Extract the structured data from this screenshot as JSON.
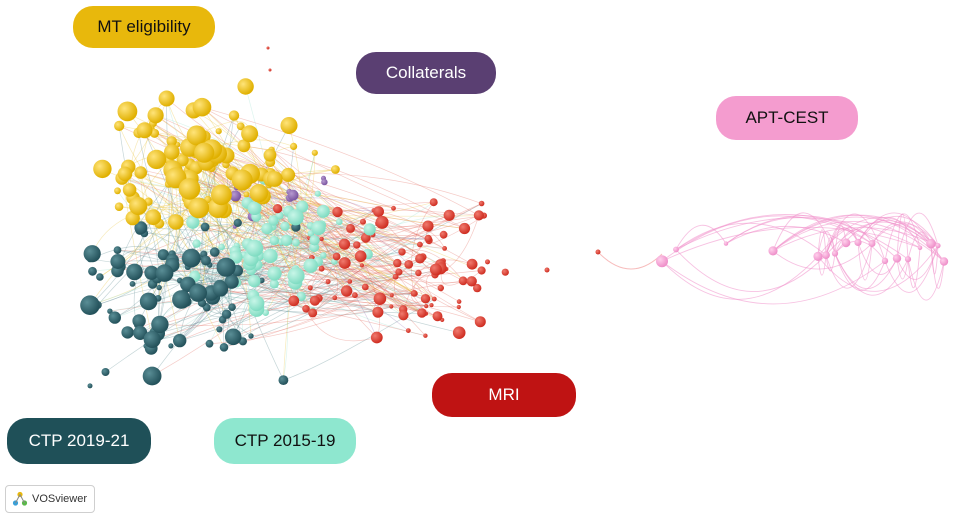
{
  "labels": {
    "mt_eligibility": "MT eligibility",
    "collaterals": "Collaterals",
    "apt_cest": "APT-CEST",
    "mri": "MRI",
    "ctp_2019_21": "CTP 2019-21",
    "ctp_2015_19": "CTP 2015-19"
  },
  "brand": {
    "name": "VOSviewer",
    "icon": "vosviewer-logo-icon"
  },
  "colors": {
    "mt_eligibility": "#e8b80c",
    "collaterals": "#5a3f72",
    "apt_cest": "#f49ccf",
    "mri": "#bf1313",
    "ctp_2019_21": "#1f5058",
    "ctp_2015_19": "#8ee7cf"
  }
}
